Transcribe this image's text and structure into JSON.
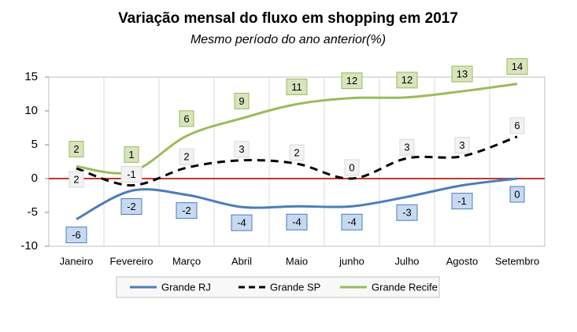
{
  "chart_data": {
    "type": "line",
    "title": "Variação mensal do fluxo em shopping em 2017",
    "subtitle": "Mesmo período do ano anterior(%)",
    "categories": [
      "Janeiro",
      "Fevereiro",
      "Março",
      "Abril",
      "Maio",
      "junho",
      "Julho",
      "Agosto",
      "Setembro"
    ],
    "series": [
      {
        "name": "Grande RJ",
        "color": "#4a7ebb",
        "label_bg": "#c6d9f1",
        "dash": "solid",
        "values": [
          -6,
          -1.8,
          -2.4,
          -4.2,
          -4.1,
          -4.1,
          -2.7,
          -1,
          0
        ],
        "value_labels": [
          "-6",
          "-2",
          "-2",
          "-4",
          "-4",
          "-4",
          "-3",
          "-1",
          "0"
        ]
      },
      {
        "name": "Grande SP",
        "color": "#000000",
        "label_bg": "#f2f2f2",
        "dash": "dashed",
        "values": [
          1.5,
          -1,
          1.6,
          2.7,
          2.2,
          0,
          3,
          3.3,
          6.2
        ],
        "value_labels": [
          "2",
          "-1",
          "2",
          "3",
          "2",
          "0",
          "3",
          "3",
          "6"
        ]
      },
      {
        "name": "Grande Recife",
        "color": "#9bbb59",
        "label_bg": "#d7e4bc",
        "dash": "solid",
        "values": [
          1.8,
          1,
          6.3,
          8.9,
          11,
          11.9,
          12,
          12.9,
          14
        ],
        "value_labels": [
          "2",
          "1",
          "6",
          "9",
          "11",
          "12",
          "12",
          "13",
          "14"
        ]
      }
    ],
    "ylim": [
      -10,
      15
    ],
    "yticks": [
      -10,
      -5,
      0,
      5,
      10,
      15
    ],
    "category_grid": true,
    "zero_line_color": "#c0392b",
    "legend": "bottom"
  }
}
